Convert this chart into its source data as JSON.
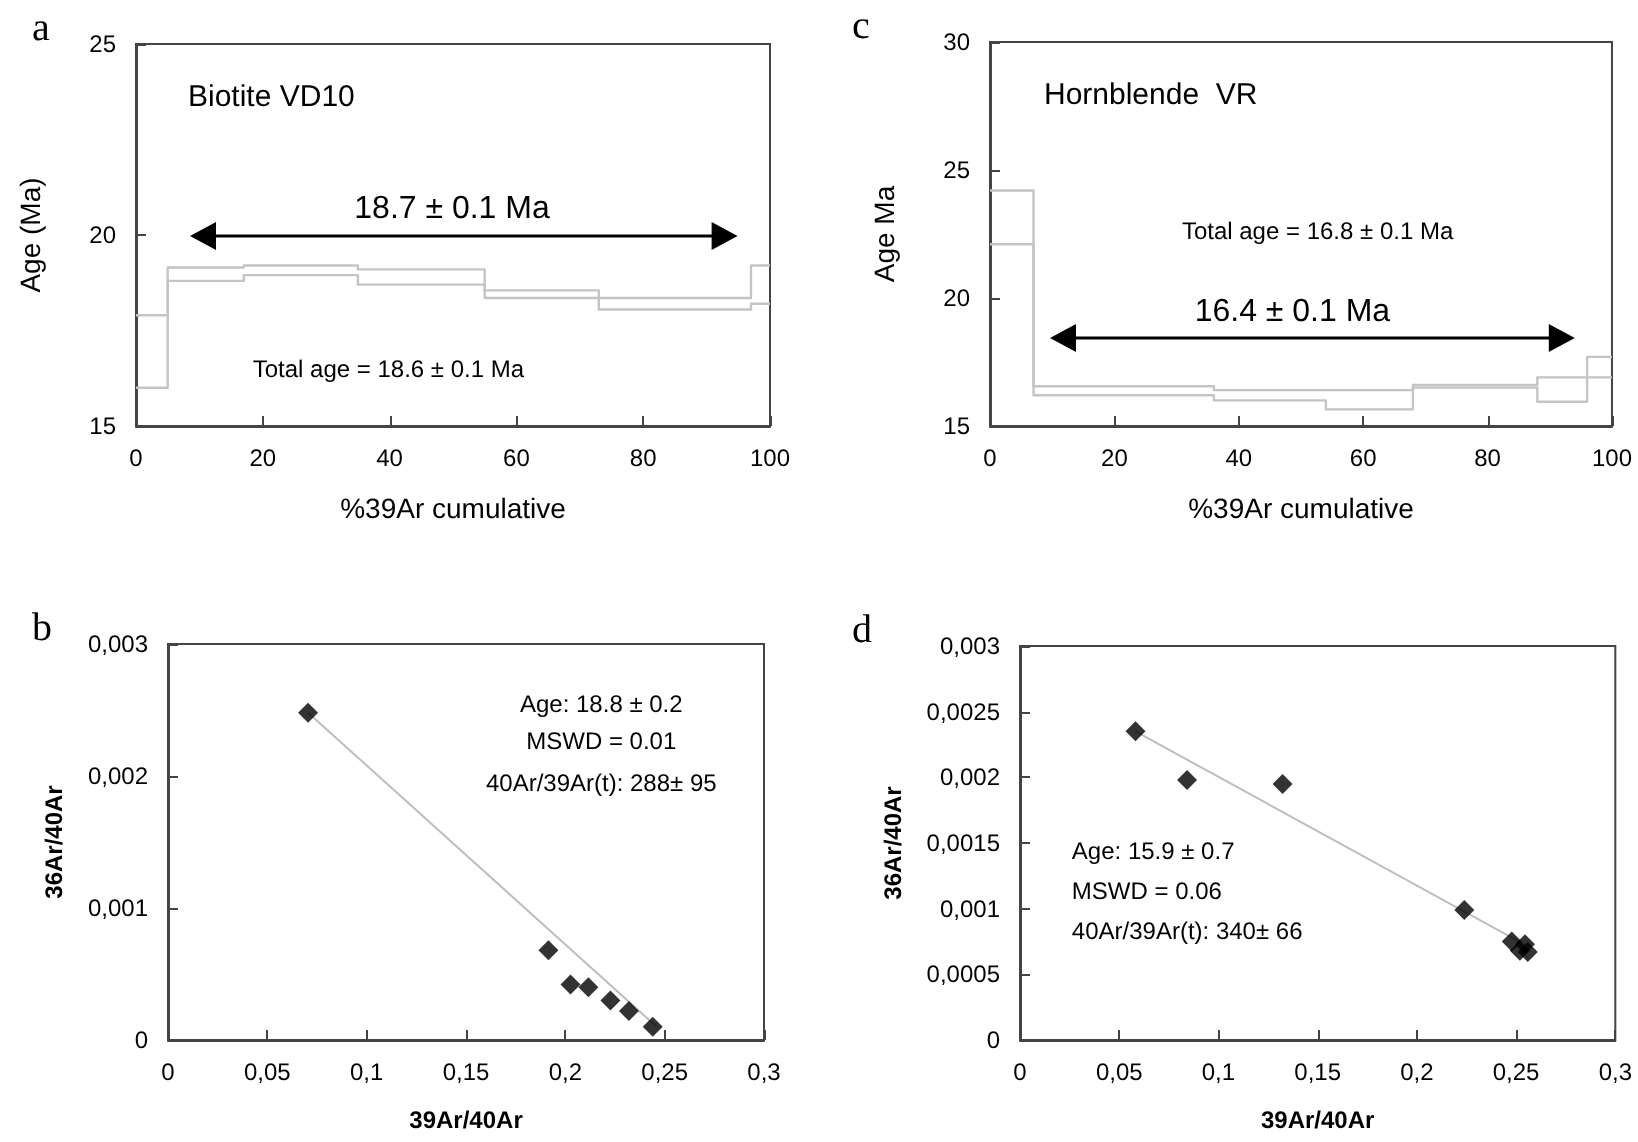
{
  "chart_data": [
    {
      "type": "step",
      "title": "Biotite VD10",
      "xlabel": "%39Ar cumulative",
      "ylabel": "Age (Ma)",
      "marker": "none",
      "annotations": [
        "a",
        "18.7 ± 0.1 Ma",
        "Total age = 18.6 ± 0.1 Ma"
      ],
      "x": [
        0,
        5,
        17,
        35,
        55,
        73,
        97,
        100
      ],
      "series": [
        {
          "color": "#c4c4c4",
          "values": [
            17.9,
            19.15,
            19.2,
            19.1,
            18.55,
            18.35,
            19.2,
            19.2
          ]
        },
        {
          "color": "#c4c4c4",
          "values": [
            16.0,
            18.8,
            18.95,
            18.7,
            18.35,
            18.05,
            18.2,
            18.2
          ]
        }
      ],
      "xlim": [
        0,
        100
      ],
      "xticks": [
        0,
        20,
        40,
        60,
        80,
        100
      ],
      "ylim": [
        15,
        25
      ],
      "yticks": [
        15,
        20,
        25
      ]
    },
    {
      "type": "step",
      "title": "Hornblende  VR",
      "xlabel": "%39Ar cumulative",
      "ylabel": "Age Ma",
      "marker": "none",
      "annotations": [
        "c",
        "16.4 ± 0.1 Ma",
        "Total age = 16.8 ± 0.1 Ma"
      ],
      "x": [
        0,
        7,
        36,
        54,
        68,
        88,
        96,
        100
      ],
      "series": [
        {
          "color": "#c4c4c4",
          "values": [
            24.2,
            16.55,
            16.4,
            16.4,
            16.6,
            16.9,
            17.7,
            17.7
          ]
        },
        {
          "color": "#c4c4c4",
          "values": [
            22.1,
            16.2,
            16.0,
            15.65,
            16.5,
            15.95,
            16.9,
            16.9
          ]
        }
      ],
      "xlim": [
        0,
        100
      ],
      "xticks": [
        0,
        20,
        40,
        60,
        80,
        100
      ],
      "ylim": [
        15,
        30
      ],
      "yticks": [
        15,
        20,
        25,
        30
      ]
    },
    {
      "type": "scatter",
      "xlabel": "39Ar/40Ar",
      "ylabel": "36Ar/40Ar",
      "marker": "diamond",
      "annotations": [
        "b",
        "Age: 18.8 ± 0.2",
        "MSWD = 0.01",
        "40Ar/39Ar(t): 288± 95"
      ],
      "series": [
        {
          "color": "#000000",
          "x": [
            0.0705,
            0.1915,
            0.2026,
            0.2116,
            0.2227,
            0.232,
            0.244
          ],
          "values": [
            0.00248,
            0.00068,
            0.00042,
            0.0004,
            0.0003,
            0.00022,
            0.0001
          ]
        },
        {
          "type": "line",
          "marker": "none",
          "color": "#bdbdbd",
          "x": [
            0.0705,
            0.246
          ],
          "values": [
            0.00248,
            0.0001
          ]
        }
      ],
      "xlim": [
        0,
        0.3
      ],
      "xticks": [
        0,
        {
          "value": 0.05,
          "label": "0,05"
        },
        {
          "value": 0.1,
          "label": "0,1"
        },
        {
          "value": 0.15,
          "label": "0,15"
        },
        {
          "value": 0.2,
          "label": "0,2"
        },
        {
          "value": 0.25,
          "label": "0,25"
        },
        {
          "value": 0.3,
          "label": "0,3"
        }
      ],
      "ylim": [
        0,
        0.003
      ],
      "yticks": [
        0,
        {
          "value": 0.001,
          "label": "0,001"
        },
        {
          "value": 0.002,
          "label": "0,002"
        },
        {
          "value": 0.003,
          "label": "0,003"
        }
      ]
    },
    {
      "type": "scatter",
      "xlabel": "39Ar/40Ar",
      "ylabel": "36Ar/40Ar",
      "marker": "diamond",
      "annotations": [
        "d",
        "Age: 15.9 ± 0.7",
        "MSWD = 0.06",
        "40Ar/39Ar(t): 340± 66"
      ],
      "series": [
        {
          "color": "#000000",
          "x": [
            0.0582,
            0.0842,
            0.1323,
            0.2239,
            0.2478,
            0.2519,
            0.2545,
            0.2559
          ],
          "values": [
            0.00235,
            0.00198,
            0.00195,
            0.00099,
            0.00075,
            0.00068,
            0.00073,
            0.00067
          ]
        },
        {
          "type": "line",
          "marker": "none",
          "color": "#bdbdbd",
          "x": [
            0.0582,
            0.255
          ],
          "values": [
            0.00235,
            0.00072
          ]
        }
      ],
      "xlim": [
        0,
        0.3
      ],
      "xticks": [
        0,
        {
          "value": 0.05,
          "label": "0,05"
        },
        {
          "value": 0.1,
          "label": "0,1"
        },
        {
          "value": 0.15,
          "label": "0,15"
        },
        {
          "value": 0.2,
          "label": "0,2"
        },
        {
          "value": 0.25,
          "label": "0,25"
        },
        {
          "value": 0.3,
          "label": "0,3"
        }
      ],
      "ylim": [
        0,
        0.003
      ],
      "yticks": [
        0,
        {
          "value": 0.0005,
          "label": "0,0005"
        },
        {
          "value": 0.001,
          "label": "0,001"
        },
        {
          "value": 0.0015,
          "label": "0,0015"
        },
        {
          "value": 0.002,
          "label": "0,002"
        },
        {
          "value": 0.0025,
          "label": "0,0025"
        },
        {
          "value": 0.003,
          "label": "0,003"
        }
      ]
    }
  ]
}
